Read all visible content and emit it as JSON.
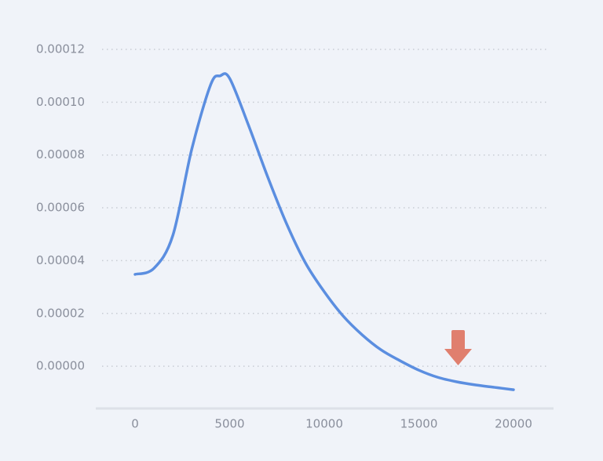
{
  "chart_data": {
    "type": "line",
    "x": [
      0,
      1000,
      2000,
      3000,
      4000,
      4500,
      5000,
      6000,
      7000,
      8000,
      9000,
      10000,
      11000,
      12000,
      13000,
      14000,
      15000,
      16000,
      17000,
      18000,
      19000,
      20000
    ],
    "series": [
      {
        "color": "#5b8ee0",
        "values": [
          3.48e-05,
          3.71e-05,
          4.96e-05,
          8.23e-05,
          0.0001067,
          0.00011,
          0.000109,
          9.12e-05,
          7.19e-05,
          5.41e-05,
          3.92e-05,
          2.82e-05,
          1.9e-05,
          1.19e-05,
          6.2e-06,
          2.1e-06,
          -1.5e-06,
          -4.2e-06,
          -5.9e-06,
          -7.1e-06,
          -8e-06,
          -8.9e-06
        ]
      }
    ],
    "xlim": [
      -2075,
      22116
    ],
    "xticks": [
      0,
      5000,
      10000,
      15000,
      20000
    ],
    "ylim": [
      -1.6e-05,
      0.00012
    ],
    "yticks": [
      {
        "value": 0,
        "label": "0.00000"
      },
      {
        "value": 2e-05,
        "label": "0.00002"
      },
      {
        "value": 4e-05,
        "label": "0.00004"
      },
      {
        "value": 6e-05,
        "label": "0.00006"
      },
      {
        "value": 8e-05,
        "label": "0.00008"
      },
      {
        "value": 0.0001,
        "label": "0.00010"
      },
      {
        "value": 0.00012,
        "label": "0.00012"
      }
    ],
    "grid": true
  }
}
